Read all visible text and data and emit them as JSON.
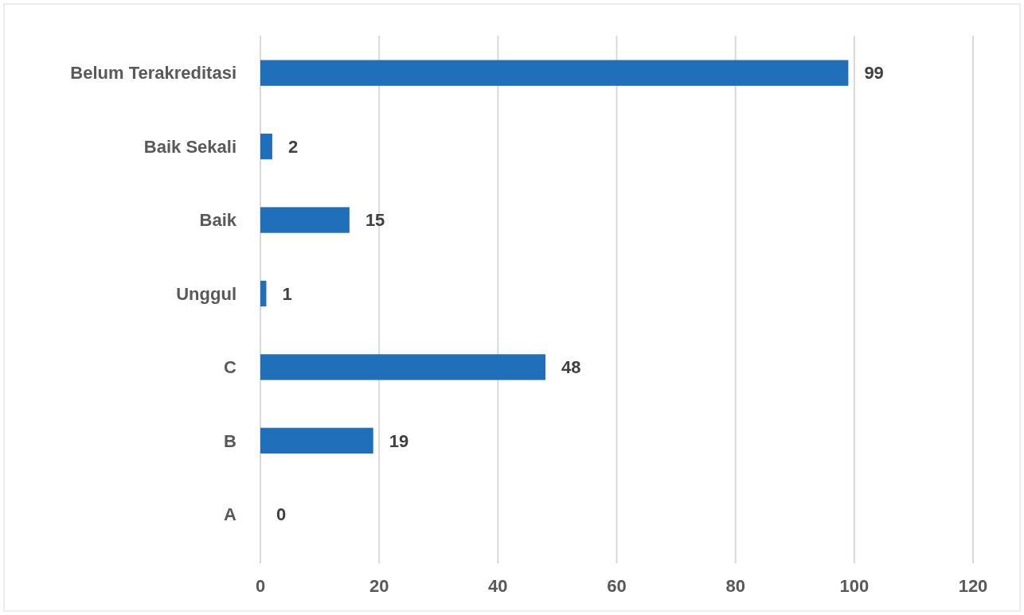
{
  "chart_data": {
    "type": "bar",
    "orientation": "horizontal",
    "categories": [
      "Belum Terakreditasi",
      "Baik Sekali",
      "Baik",
      "Unggul",
      "C",
      "B",
      "A"
    ],
    "values": [
      99,
      2,
      15,
      1,
      48,
      19,
      0
    ],
    "color": "#1f6fba",
    "xlim": [
      0,
      120
    ],
    "xticks": [
      0,
      20,
      40,
      60,
      80,
      100,
      120
    ],
    "grid": "x",
    "data_labels": true
  }
}
